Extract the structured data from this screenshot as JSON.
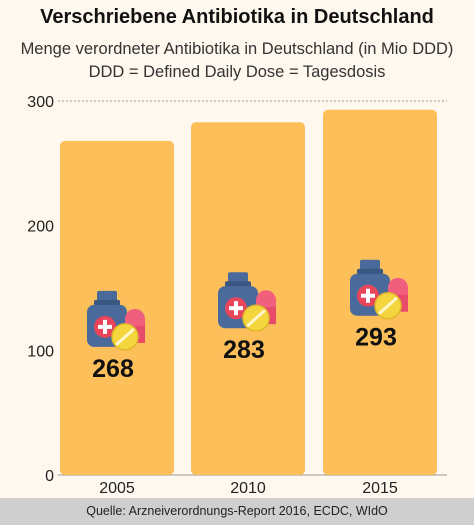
{
  "header": {
    "title": "Verschriebene Antibiotika in Deutschland",
    "subtitle_line1": "Menge verordneter Antibiotika in Deutschland (in Mio DDD)",
    "subtitle_line2": "DDD = Defined Daily Dose = Tagesdosis"
  },
  "footer": {
    "source": "Quelle: Arzneiverordnungs-Report 2016, ECDC, WIdO"
  },
  "colors": {
    "bar": "#fdbf5a",
    "background": "#fff8ee",
    "footer": "#cfcfcf",
    "icon_bottle": "#4a6a9c",
    "icon_cross": "#e8455a",
    "icon_pill_pink": "#f0607e",
    "icon_pill_yellow": "#f5d53d"
  },
  "chart_data": {
    "type": "bar",
    "categories": [
      "2005",
      "2010",
      "2015"
    ],
    "values": [
      268,
      283,
      293
    ],
    "data_labels": [
      "268",
      "283",
      "293"
    ],
    "yticks": [
      0,
      100,
      200,
      300
    ],
    "ylim": [
      0,
      300
    ],
    "grid": "horizontal dotted at 300",
    "legend": "none",
    "icons": [
      "medicine-bottle-icon",
      "pills-icon"
    ]
  }
}
